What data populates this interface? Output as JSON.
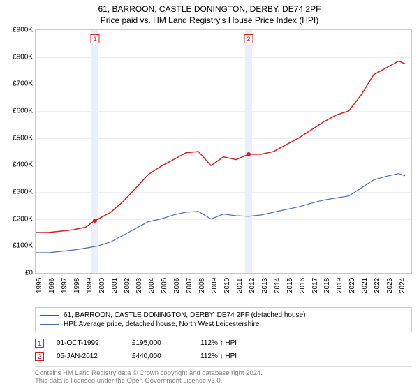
{
  "title": {
    "address": "61, BARROON, CASTLE DONINGTON, DERBY, DE74 2PF",
    "subtitle": "Price paid vs. HM Land Registry's House Price Index (HPI)"
  },
  "chart": {
    "type": "line",
    "background_color": "#ffffff",
    "grid_color": "#eeeeee",
    "border_color": "#c8c8c8",
    "ylim": [
      0,
      900
    ],
    "ytick_step": 100,
    "ytick_labels": [
      "£0",
      "£100K",
      "£200K",
      "£300K",
      "£400K",
      "£500K",
      "£600K",
      "£700K",
      "£800K",
      "£900K"
    ],
    "xlim": [
      1995,
      2025
    ],
    "xticks": [
      1995,
      1996,
      1997,
      1998,
      1999,
      2000,
      2001,
      2002,
      2003,
      2004,
      2005,
      2006,
      2007,
      2008,
      2009,
      2010,
      2011,
      2012,
      2013,
      2014,
      2015,
      2016,
      2017,
      2018,
      2019,
      2020,
      2021,
      2022,
      2023,
      2024
    ],
    "series": [
      {
        "name": "property",
        "color": "#d6201f",
        "line_width": 1.5,
        "data": [
          [
            1995,
            150
          ],
          [
            1996,
            150
          ],
          [
            1997,
            155
          ],
          [
            1998,
            160
          ],
          [
            1999,
            170
          ],
          [
            1999.75,
            195
          ],
          [
            2000,
            200
          ],
          [
            2001,
            225
          ],
          [
            2002,
            265
          ],
          [
            2003,
            315
          ],
          [
            2004,
            365
          ],
          [
            2005,
            395
          ],
          [
            2006,
            420
          ],
          [
            2007,
            445
          ],
          [
            2008,
            450
          ],
          [
            2009,
            398
          ],
          [
            2010,
            430
          ],
          [
            2011,
            420
          ],
          [
            2012,
            440
          ],
          [
            2013,
            440
          ],
          [
            2014,
            450
          ],
          [
            2015,
            475
          ],
          [
            2016,
            500
          ],
          [
            2017,
            530
          ],
          [
            2018,
            560
          ],
          [
            2019,
            585
          ],
          [
            2020,
            600
          ],
          [
            2021,
            660
          ],
          [
            2022,
            735
          ],
          [
            2023,
            760
          ],
          [
            2024,
            785
          ],
          [
            2024.5,
            775
          ]
        ]
      },
      {
        "name": "hpi",
        "color": "#4a6fb3",
        "line_width": 1.2,
        "data": [
          [
            1995,
            75
          ],
          [
            1996,
            75
          ],
          [
            1997,
            80
          ],
          [
            1998,
            85
          ],
          [
            1999,
            92
          ],
          [
            2000,
            100
          ],
          [
            2001,
            115
          ],
          [
            2002,
            140
          ],
          [
            2003,
            165
          ],
          [
            2004,
            190
          ],
          [
            2005,
            200
          ],
          [
            2006,
            215
          ],
          [
            2007,
            225
          ],
          [
            2008,
            228
          ],
          [
            2009,
            200
          ],
          [
            2010,
            218
          ],
          [
            2011,
            212
          ],
          [
            2012,
            210
          ],
          [
            2013,
            215
          ],
          [
            2014,
            225
          ],
          [
            2015,
            235
          ],
          [
            2016,
            245
          ],
          [
            2017,
            258
          ],
          [
            2018,
            270
          ],
          [
            2019,
            278
          ],
          [
            2020,
            285
          ],
          [
            2021,
            315
          ],
          [
            2022,
            345
          ],
          [
            2023,
            358
          ],
          [
            2024,
            368
          ],
          [
            2024.5,
            360
          ]
        ]
      }
    ],
    "markers": [
      {
        "id": "1",
        "x": 1999.75,
        "y": 195,
        "band_color": "#eaf0fb",
        "border_color": "#d6201f"
      },
      {
        "id": "2",
        "x": 2012.0,
        "y": 440,
        "band_color": "#eaf0fb",
        "border_color": "#d6201f"
      }
    ]
  },
  "legend": {
    "items": [
      {
        "color": "#d6201f",
        "label": "61, BARROON, CASTLE DONINGTON, DERBY, DE74 2PF (detached house)"
      },
      {
        "color": "#4a6fb3",
        "label": "HPI: Average price, detached house, North West Leicestershire"
      }
    ]
  },
  "events": [
    {
      "id": "1",
      "border_color": "#d6201f",
      "date": "01-OCT-1999",
      "price": "£195,000",
      "pct": "112% ↑ HPI"
    },
    {
      "id": "2",
      "border_color": "#d6201f",
      "date": "05-JAN-2012",
      "price": "£440,000",
      "pct": "112% ↑ HPI"
    }
  ],
  "footer": {
    "line1": "Contains HM Land Registry data © Crown copyright and database right 2024.",
    "line2": "This data is licensed under the Open Government Licence v3.0."
  }
}
